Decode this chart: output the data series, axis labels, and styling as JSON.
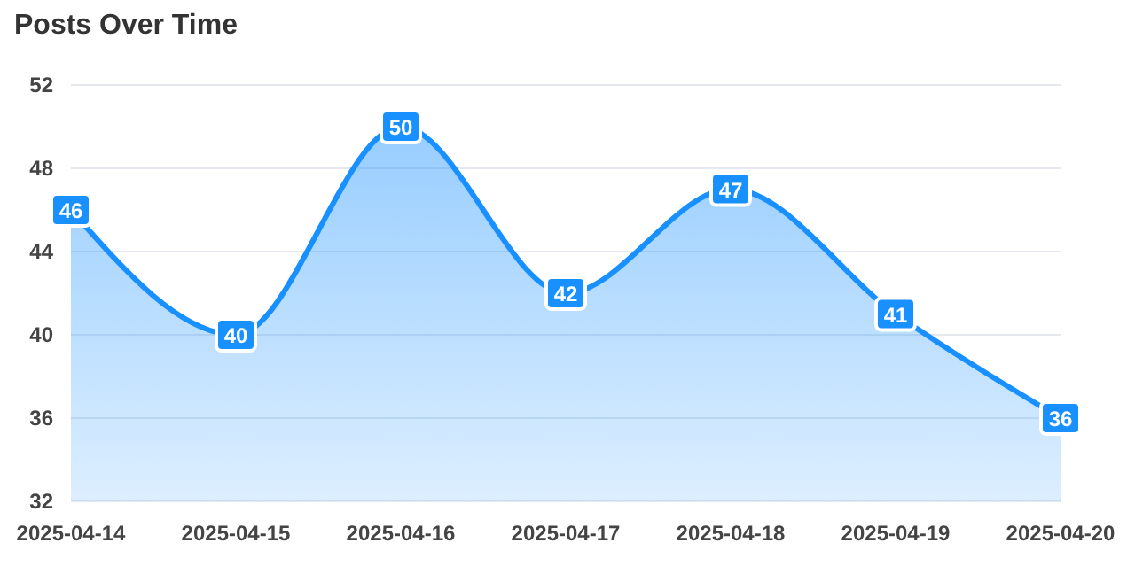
{
  "chart_data": {
    "type": "area",
    "title": "Posts Over Time",
    "categories": [
      "2025-04-14",
      "2025-04-15",
      "2025-04-16",
      "2025-04-17",
      "2025-04-18",
      "2025-04-19",
      "2025-04-20"
    ],
    "series": [
      {
        "color": "#1890ff",
        "values": [
          46,
          40,
          50,
          42,
          47,
          41,
          36
        ]
      }
    ],
    "ylim": [
      32,
      52
    ],
    "yticks": [
      32,
      36,
      40,
      44,
      48,
      52
    ],
    "grid": "y",
    "data_labels": true
  }
}
